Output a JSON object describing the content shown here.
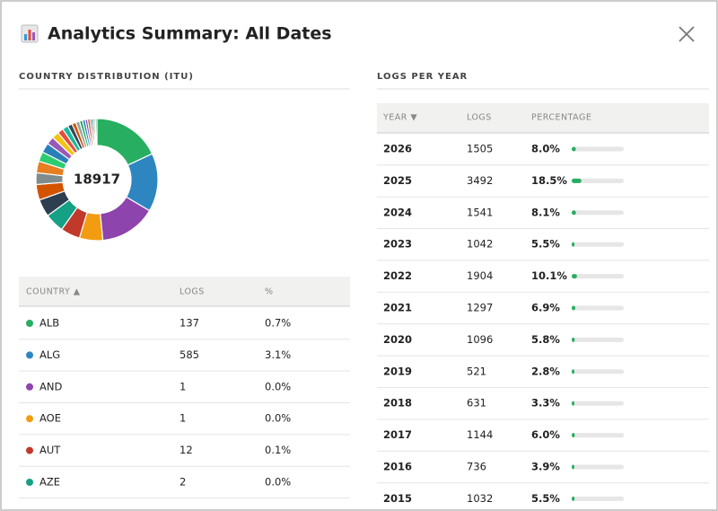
{
  "header": {
    "title": "Analytics Summary: All Dates"
  },
  "country_section": {
    "title": "COUNTRY DISTRIBUTION (ITU)",
    "donut": {
      "total": "18917",
      "segments": [
        {
          "color": "#27ae60",
          "value": 17.5
        },
        {
          "color": "#2e86c1",
          "value": 15
        },
        {
          "color": "#8e44ad",
          "value": 14.5
        },
        {
          "color": "#f39c12",
          "value": 6
        },
        {
          "color": "#c0392b",
          "value": 5
        },
        {
          "color": "#16a085",
          "value": 5
        },
        {
          "color": "#2c3e50",
          "value": 4.5
        },
        {
          "color": "#d35400",
          "value": 4
        },
        {
          "color": "#7f8c8d",
          "value": 3
        },
        {
          "color": "#e67e22",
          "value": 3
        },
        {
          "color": "#2ecc71",
          "value": 2.5
        },
        {
          "color": "#2980b9",
          "value": 2.5
        },
        {
          "color": "#9b59b6",
          "value": 2
        },
        {
          "color": "#f1c40f",
          "value": 1.8
        },
        {
          "color": "#e74c3c",
          "value": 1.5
        },
        {
          "color": "#1abc9c",
          "value": 1.5
        },
        {
          "color": "#34495e",
          "value": 1.2
        },
        {
          "color": "#d35400",
          "value": 1
        },
        {
          "color": "#95a5a6",
          "value": 1
        },
        {
          "color": "#27ae60",
          "value": 0.8
        },
        {
          "color": "#2980b9",
          "value": 0.7
        },
        {
          "color": "#8e44ad",
          "value": 0.6
        },
        {
          "color": "#a0522d",
          "value": 0.6
        },
        {
          "color": "#c0392b",
          "value": 0.5
        },
        {
          "color": "#16a085",
          "value": 0.5
        },
        {
          "color": "#7f8c8d",
          "value": 0.4
        },
        {
          "color": "#27ae60",
          "value": 0.4
        }
      ]
    },
    "table": {
      "columns": [
        "COUNTRY ▲",
        "LOGS",
        "%"
      ],
      "rows": [
        {
          "color": "#27ae60",
          "country": "ALB",
          "logs": "137",
          "percent": "0.7%"
        },
        {
          "color": "#2e86c1",
          "country": "ALG",
          "logs": "585",
          "percent": "3.1%"
        },
        {
          "color": "#8e44ad",
          "country": "AND",
          "logs": "1",
          "percent": "0.0%"
        },
        {
          "color": "#f39c12",
          "country": "AOE",
          "logs": "1",
          "percent": "0.0%"
        },
        {
          "color": "#c0392b",
          "country": "AUT",
          "logs": "12",
          "percent": "0.1%"
        },
        {
          "color": "#16a085",
          "country": "AZE",
          "logs": "2",
          "percent": "0.0%"
        }
      ]
    }
  },
  "year_section": {
    "title": "LOGS PER YEAR",
    "table": {
      "columns": [
        "YEAR ▼",
        "LOGS",
        "PERCENTAGE"
      ],
      "bar_color": "#27ae60",
      "rows": [
        {
          "year": "2026",
          "logs": "1505",
          "percentage": {
            "value": 8.0,
            "label": "8.0%"
          }
        },
        {
          "year": "2025",
          "logs": "3492",
          "percentage": {
            "value": 18.5,
            "label": "18.5%"
          }
        },
        {
          "year": "2024",
          "logs": "1541",
          "percentage": {
            "value": 8.1,
            "label": "8.1%"
          }
        },
        {
          "year": "2023",
          "logs": "1042",
          "percentage": {
            "value": 5.5,
            "label": "5.5%"
          }
        },
        {
          "year": "2022",
          "logs": "1904",
          "percentage": {
            "value": 10.1,
            "label": "10.1%"
          }
        },
        {
          "year": "2021",
          "logs": "1297",
          "percentage": {
            "value": 6.9,
            "label": "6.9%"
          }
        },
        {
          "year": "2020",
          "logs": "1096",
          "percentage": {
            "value": 5.8,
            "label": "5.8%"
          }
        },
        {
          "year": "2019",
          "logs": "521",
          "percentage": {
            "value": 2.8,
            "label": "2.8%"
          }
        },
        {
          "year": "2018",
          "logs": "631",
          "percentage": {
            "value": 3.3,
            "label": "3.3%"
          }
        },
        {
          "year": "2017",
          "logs": "1144",
          "percentage": {
            "value": 6.0,
            "label": "6.0%"
          }
        },
        {
          "year": "2016",
          "logs": "736",
          "percentage": {
            "value": 3.9,
            "label": "3.9%"
          }
        },
        {
          "year": "2015",
          "logs": "1032",
          "percentage": {
            "value": 5.5,
            "label": "5.5%"
          }
        }
      ]
    }
  }
}
